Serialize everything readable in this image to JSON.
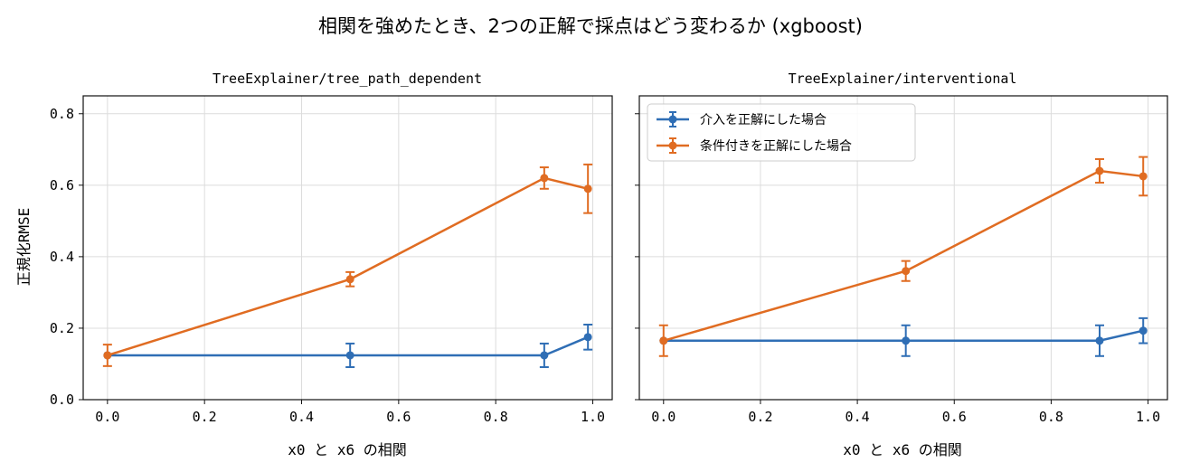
{
  "figure": {
    "title": "相関を強めたとき、2つの正解で採点はどう変わるか (xgboost)"
  },
  "chart_data": [
    {
      "type": "line",
      "title": "TreeExplainer/tree_path_dependent",
      "xlabel": "x0 と x6 の相関",
      "ylabel": "正規化RMSE",
      "x": [
        0.0,
        0.5,
        0.9,
        0.99
      ],
      "xlim": [
        -0.05,
        1.04
      ],
      "ylim": [
        0.0,
        0.85
      ],
      "xticks": [
        "0.0",
        "0.2",
        "0.4",
        "0.6",
        "0.8",
        "1.0"
      ],
      "yticks": [
        "0.0",
        "0.2",
        "0.4",
        "0.6",
        "0.8"
      ],
      "grid": true,
      "series": [
        {
          "name": "介入を正解にした場合",
          "color": "#2f6eb5",
          "values": [
            0.124,
            0.124,
            0.124,
            0.175
          ],
          "errors": [
            0.0,
            0.033,
            0.033,
            0.035
          ]
        },
        {
          "name": "条件付きを正解にした場合",
          "color": "#e06c22",
          "values": [
            0.124,
            0.337,
            0.62,
            0.59
          ],
          "errors": [
            0.03,
            0.02,
            0.03,
            0.068
          ]
        }
      ]
    },
    {
      "type": "line",
      "title": "TreeExplainer/interventional",
      "xlabel": "x0 と x6 の相関",
      "ylabel": "",
      "x": [
        0.0,
        0.5,
        0.9,
        0.99
      ],
      "xlim": [
        -0.05,
        1.04
      ],
      "ylim": [
        0.0,
        0.85
      ],
      "xticks": [
        "0.0",
        "0.2",
        "0.4",
        "0.6",
        "0.8",
        "1.0"
      ],
      "yticks": [
        "",
        "",
        "",
        "",
        ""
      ],
      "grid": true,
      "legend": "top-left",
      "series": [
        {
          "name": "介入を正解にした場合",
          "color": "#2f6eb5",
          "values": [
            0.165,
            0.165,
            0.165,
            0.193
          ],
          "errors": [
            0.0,
            0.043,
            0.043,
            0.035
          ]
        },
        {
          "name": "条件付きを正解にした場合",
          "color": "#e06c22",
          "values": [
            0.165,
            0.36,
            0.64,
            0.625
          ],
          "errors": [
            0.043,
            0.028,
            0.033,
            0.054
          ]
        }
      ]
    }
  ]
}
